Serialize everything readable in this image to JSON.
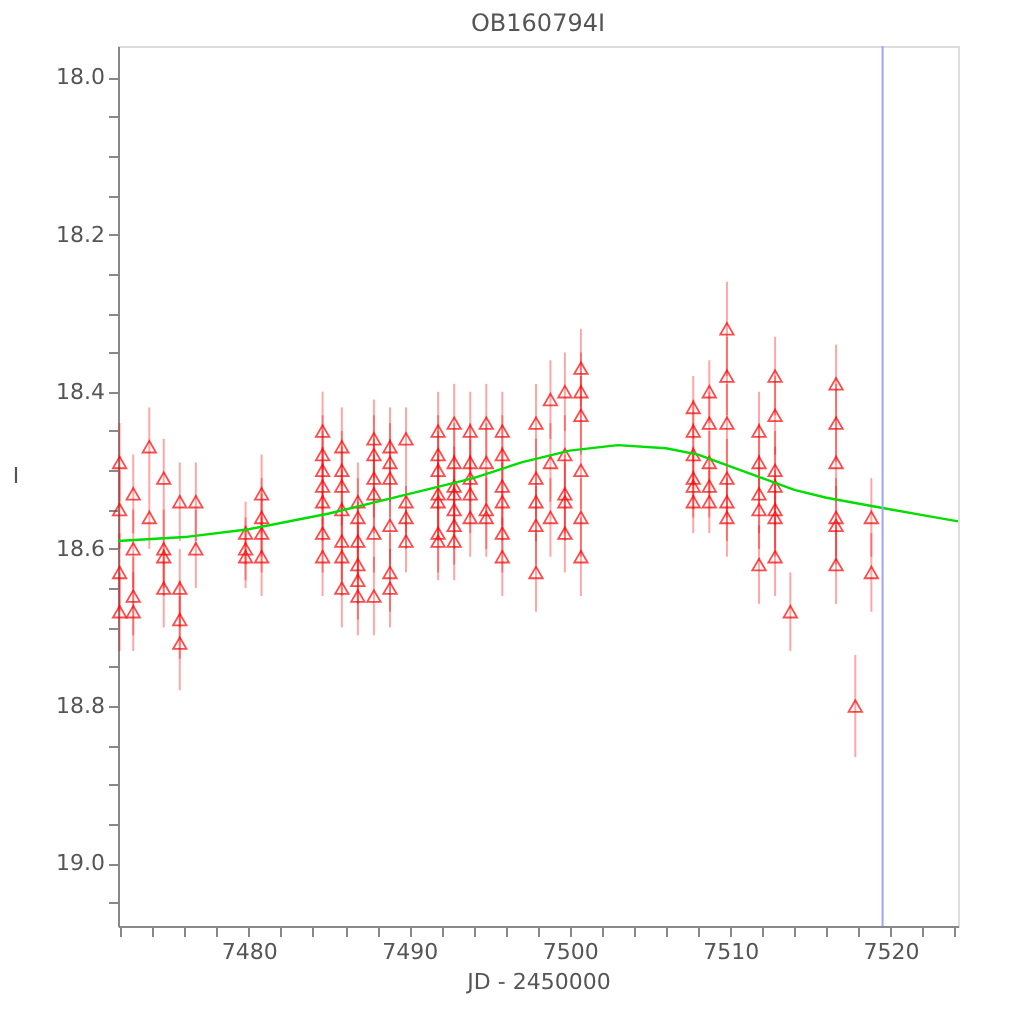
{
  "chart_data": {
    "type": "scatter",
    "title": "OB160794I",
    "xlabel": "JD - 2450000",
    "ylabel": "I",
    "xlim": [
      7471.85,
      7524.2
    ],
    "ylim": [
      19.08,
      17.96
    ],
    "xticks": [
      {
        "value": 7472,
        "label": null
      },
      {
        "value": 7474,
        "label": null
      },
      {
        "value": 7476,
        "label": null
      },
      {
        "value": 7478,
        "label": null
      },
      7480,
      {
        "value": 7482,
        "label": null
      },
      {
        "value": 7484,
        "label": null
      },
      {
        "value": 7486,
        "label": null
      },
      {
        "value": 7488,
        "label": null
      },
      7490,
      {
        "value": 7492,
        "label": null
      },
      {
        "value": 7494,
        "label": null
      },
      {
        "value": 7496,
        "label": null
      },
      {
        "value": 7498,
        "label": null
      },
      7500,
      {
        "value": 7502,
        "label": null
      },
      {
        "value": 7504,
        "label": null
      },
      {
        "value": 7506,
        "label": null
      },
      {
        "value": 7508,
        "label": null
      },
      7510,
      {
        "value": 7512,
        "label": null
      },
      {
        "value": 7514,
        "label": null
      },
      {
        "value": 7516,
        "label": null
      },
      {
        "value": 7518,
        "label": null
      },
      7520,
      {
        "value": 7522,
        "label": null
      },
      {
        "value": 7524,
        "label": null
      }
    ],
    "yticks": [
      {
        "value": 18.0,
        "label": "18.0"
      },
      {
        "value": 18.05,
        "label": null
      },
      {
        "value": 18.1,
        "label": null
      },
      {
        "value": 18.15,
        "label": null
      },
      {
        "value": 18.2,
        "label": "18.2"
      },
      {
        "value": 18.25,
        "label": null
      },
      {
        "value": 18.3,
        "label": null
      },
      {
        "value": 18.35,
        "label": null
      },
      {
        "value": 18.4,
        "label": "18.4"
      },
      {
        "value": 18.45,
        "label": null
      },
      {
        "value": 18.5,
        "label": null
      },
      {
        "value": 18.55,
        "label": null
      },
      {
        "value": 18.6,
        "label": "18.6"
      },
      {
        "value": 18.65,
        "label": null
      },
      {
        "value": 18.7,
        "label": null
      },
      {
        "value": 18.75,
        "label": null
      },
      {
        "value": 18.8,
        "label": "18.8"
      },
      {
        "value": 18.85,
        "label": null
      },
      {
        "value": 18.9,
        "label": null
      },
      {
        "value": 18.95,
        "label": null
      },
      {
        "value": 19.0,
        "label": "19.0"
      },
      {
        "value": 19.05,
        "label": null
      }
    ],
    "grid": false,
    "marker": "triangle",
    "ref_lines": [
      {
        "axis": "x",
        "value": 7519.5,
        "label": null,
        "color": "#a0a0ff"
      }
    ],
    "series": [
      {
        "color": "#ff0000",
        "x": [
          7471.95,
          7471.95,
          7471.95,
          7471.95,
          7472.8,
          7472.8,
          7472.8,
          7472.8,
          7473.8,
          7473.8,
          7474.7,
          7474.7,
          7474.7,
          7474.7,
          7475.7,
          7475.7,
          7475.7,
          7475.7,
          7476.7,
          7476.7,
          7479.8,
          7479.8,
          7479.8,
          7480.8,
          7480.8,
          7480.8,
          7480.8,
          7484.6,
          7484.6,
          7484.6,
          7484.6,
          7484.6,
          7484.6,
          7484.6,
          7485.8,
          7485.8,
          7485.8,
          7485.8,
          7485.8,
          7485.8,
          7485.8,
          7486.8,
          7486.8,
          7486.8,
          7486.8,
          7486.8,
          7486.8,
          7487.8,
          7487.8,
          7487.8,
          7487.8,
          7487.8,
          7487.8,
          7488.8,
          7488.8,
          7488.8,
          7488.8,
          7488.8,
          7488.8,
          7489.8,
          7489.8,
          7489.8,
          7489.8,
          7491.8,
          7491.8,
          7491.8,
          7491.8,
          7491.8,
          7491.8,
          7491.8,
          7492.8,
          7492.8,
          7492.8,
          7492.8,
          7492.8,
          7492.8,
          7492.8,
          7493.8,
          7493.8,
          7493.8,
          7493.8,
          7493.8,
          7494.8,
          7494.8,
          7494.8,
          7494.8,
          7495.8,
          7495.8,
          7495.8,
          7495.8,
          7495.8,
          7495.8,
          7497.9,
          7497.9,
          7497.9,
          7497.9,
          7497.9,
          7498.8,
          7498.8,
          7498.8,
          7499.7,
          7499.7,
          7499.7,
          7499.7,
          7499.7,
          7500.7,
          7500.7,
          7500.7,
          7500.7,
          7500.7,
          7500.7,
          7507.7,
          7507.7,
          7507.7,
          7507.7,
          7507.7,
          7507.7,
          7508.7,
          7508.7,
          7508.7,
          7508.7,
          7508.7,
          7509.8,
          7509.8,
          7509.8,
          7509.8,
          7509.8,
          7509.8,
          7511.8,
          7511.8,
          7511.8,
          7511.8,
          7511.8,
          7512.8,
          7512.8,
          7512.8,
          7512.8,
          7512.8,
          7512.8,
          7512.8,
          7513.75,
          7516.6,
          7516.6,
          7516.6,
          7516.6,
          7516.6,
          7516.6,
          7517.8,
          7518.8,
          7518.8
        ],
        "values": [
          18.49,
          18.55,
          18.63,
          18.68,
          18.53,
          18.6,
          18.66,
          18.68,
          18.56,
          18.47,
          18.51,
          18.6,
          18.61,
          18.65,
          18.54,
          18.65,
          18.69,
          18.72,
          18.54,
          18.6,
          18.58,
          18.6,
          18.61,
          18.53,
          18.56,
          18.58,
          18.61,
          18.45,
          18.48,
          18.5,
          18.52,
          18.54,
          18.58,
          18.61,
          18.47,
          18.5,
          18.52,
          18.55,
          18.59,
          18.61,
          18.65,
          18.54,
          18.56,
          18.59,
          18.62,
          18.64,
          18.66,
          18.46,
          18.48,
          18.51,
          18.53,
          18.58,
          18.66,
          18.47,
          18.49,
          18.51,
          18.57,
          18.63,
          18.65,
          18.46,
          18.54,
          18.56,
          18.59,
          18.45,
          18.48,
          18.5,
          18.53,
          18.54,
          18.58,
          18.59,
          18.44,
          18.49,
          18.52,
          18.53,
          18.55,
          18.57,
          18.59,
          18.45,
          18.49,
          18.51,
          18.53,
          18.56,
          18.44,
          18.49,
          18.55,
          18.56,
          18.45,
          18.48,
          18.52,
          18.54,
          18.58,
          18.61,
          18.44,
          18.51,
          18.54,
          18.57,
          18.63,
          18.41,
          18.49,
          18.56,
          18.4,
          18.48,
          18.53,
          18.54,
          18.58,
          18.37,
          18.4,
          18.43,
          18.5,
          18.56,
          18.61,
          18.42,
          18.45,
          18.48,
          18.51,
          18.52,
          18.54,
          18.4,
          18.44,
          18.49,
          18.52,
          18.54,
          18.32,
          18.38,
          18.44,
          18.51,
          18.54,
          18.56,
          18.45,
          18.49,
          18.53,
          18.55,
          18.62,
          18.38,
          18.43,
          18.5,
          18.52,
          18.55,
          18.56,
          18.61,
          18.68,
          18.39,
          18.44,
          18.49,
          18.56,
          18.57,
          18.62,
          18.8,
          18.56,
          18.63
        ],
        "errors": [
          0.05,
          0.05,
          0.05,
          0.05,
          0.05,
          0.05,
          0.05,
          0.05,
          0.04,
          0.05,
          0.05,
          0.05,
          0.05,
          0.05,
          0.05,
          0.05,
          0.05,
          0.06,
          0.05,
          0.05,
          0.04,
          0.04,
          0.04,
          0.05,
          0.05,
          0.05,
          0.05,
          0.05,
          0.05,
          0.05,
          0.05,
          0.05,
          0.05,
          0.05,
          0.05,
          0.05,
          0.05,
          0.05,
          0.05,
          0.05,
          0.05,
          0.05,
          0.05,
          0.05,
          0.05,
          0.05,
          0.05,
          0.05,
          0.05,
          0.05,
          0.05,
          0.05,
          0.05,
          0.05,
          0.05,
          0.05,
          0.05,
          0.05,
          0.05,
          0.04,
          0.04,
          0.04,
          0.04,
          0.05,
          0.05,
          0.05,
          0.05,
          0.05,
          0.05,
          0.05,
          0.05,
          0.05,
          0.05,
          0.05,
          0.05,
          0.05,
          0.05,
          0.05,
          0.05,
          0.05,
          0.05,
          0.05,
          0.05,
          0.05,
          0.05,
          0.05,
          0.05,
          0.05,
          0.05,
          0.05,
          0.05,
          0.05,
          0.05,
          0.05,
          0.05,
          0.05,
          0.05,
          0.05,
          0.05,
          0.05,
          0.05,
          0.05,
          0.05,
          0.05,
          0.05,
          0.05,
          0.05,
          0.05,
          0.05,
          0.05,
          0.05,
          0.04,
          0.04,
          0.04,
          0.04,
          0.04,
          0.04,
          0.04,
          0.04,
          0.04,
          0.04,
          0.04,
          0.06,
          0.05,
          0.05,
          0.05,
          0.05,
          0.05,
          0.05,
          0.05,
          0.05,
          0.05,
          0.05,
          0.05,
          0.05,
          0.05,
          0.05,
          0.05,
          0.05,
          0.05,
          0.05,
          0.05,
          0.05,
          0.05,
          0.05,
          0.05,
          0.05,
          0.065,
          0.05,
          0.05
        ]
      },
      {
        "type": "line",
        "color": "#00dd00",
        "marker": "none",
        "line_style": "solid",
        "x": [
          7471.85,
          7476,
          7480,
          7485,
          7490,
          7494,
          7497,
          7500,
          7503,
          7506,
          7508,
          7510,
          7512,
          7514,
          7516,
          7519.5,
          7522,
          7524.2
        ],
        "values": [
          18.59,
          18.585,
          18.575,
          18.555,
          18.53,
          18.51,
          18.49,
          18.475,
          18.468,
          18.472,
          18.48,
          18.495,
          18.51,
          18.525,
          18.535,
          18.548,
          18.557,
          18.565
        ]
      }
    ]
  }
}
